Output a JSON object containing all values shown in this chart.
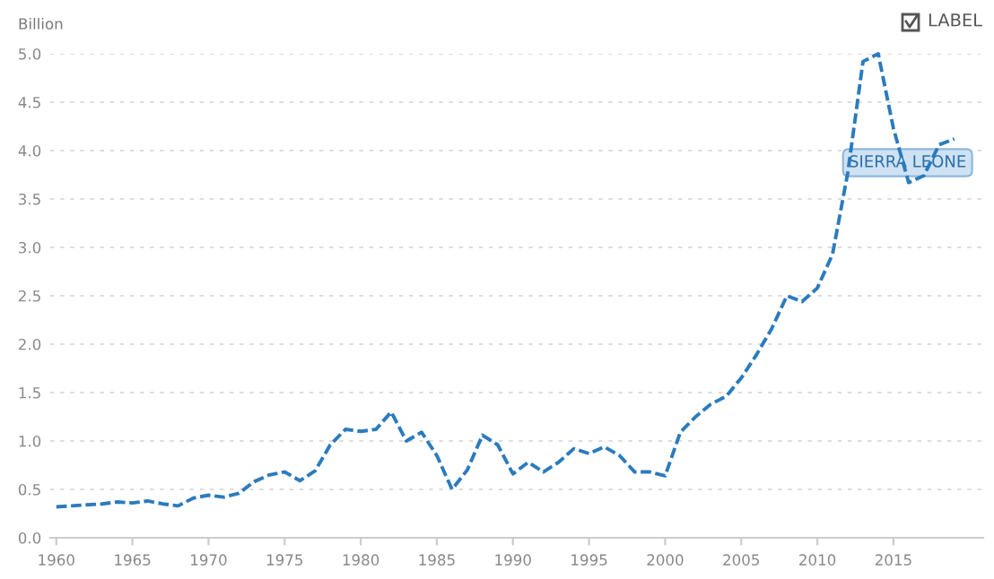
{
  "chart_data": {
    "type": "line",
    "ylabel": "Billion",
    "x": [
      1960,
      1961,
      1962,
      1963,
      1964,
      1965,
      1966,
      1967,
      1968,
      1969,
      1970,
      1971,
      1972,
      1973,
      1974,
      1975,
      1976,
      1977,
      1978,
      1979,
      1980,
      1981,
      1982,
      1983,
      1984,
      1985,
      1986,
      1987,
      1988,
      1989,
      1990,
      1991,
      1992,
      1993,
      1994,
      1995,
      1996,
      1997,
      1998,
      1999,
      2000,
      2001,
      2002,
      2003,
      2004,
      2005,
      2006,
      2007,
      2008,
      2009,
      2010,
      2011,
      2012,
      2013,
      2014,
      2015,
      2016,
      2017,
      2018,
      2019
    ],
    "series": [
      {
        "name": "SIERRA LEONE",
        "color": "#2b7bbd",
        "values": [
          0.32,
          0.33,
          0.34,
          0.35,
          0.37,
          0.36,
          0.38,
          0.35,
          0.33,
          0.41,
          0.44,
          0.42,
          0.46,
          0.58,
          0.65,
          0.68,
          0.59,
          0.69,
          0.96,
          1.12,
          1.1,
          1.12,
          1.3,
          1.0,
          1.09,
          0.85,
          0.5,
          0.7,
          1.06,
          0.96,
          0.66,
          0.78,
          0.68,
          0.78,
          0.92,
          0.87,
          0.94,
          0.85,
          0.68,
          0.68,
          0.64,
          1.09,
          1.25,
          1.38,
          1.46,
          1.65,
          1.89,
          2.16,
          2.5,
          2.44,
          2.58,
          2.93,
          3.77,
          4.92,
          5.0,
          4.23,
          3.67,
          3.74,
          4.06,
          4.12
        ]
      }
    ],
    "xlim": [
      1959.6,
      2020.9
    ],
    "ylim": [
      0,
      5
    ],
    "xticks": [
      1960,
      1965,
      1970,
      1975,
      1980,
      1985,
      1990,
      1995,
      2000,
      2005,
      2010,
      2015
    ],
    "yticks": [
      {
        "value": 0,
        "label": "0.0"
      },
      {
        "value": 0.5,
        "label": "0.5"
      },
      {
        "value": 1,
        "label": "1.0"
      },
      {
        "value": 1.5,
        "label": "1.5"
      },
      {
        "value": 2,
        "label": "2.0"
      },
      {
        "value": 2.5,
        "label": "2.5"
      },
      {
        "value": 3,
        "label": "3.0"
      },
      {
        "value": 3.5,
        "label": "3.5"
      },
      {
        "value": 4,
        "label": "4.0"
      },
      {
        "value": 4.5,
        "label": "4.5"
      },
      {
        "value": 5,
        "label": "5.0"
      }
    ],
    "grid": "y",
    "line_style": "dashed",
    "marker": "none",
    "annotations": [
      "LABEL"
    ]
  }
}
